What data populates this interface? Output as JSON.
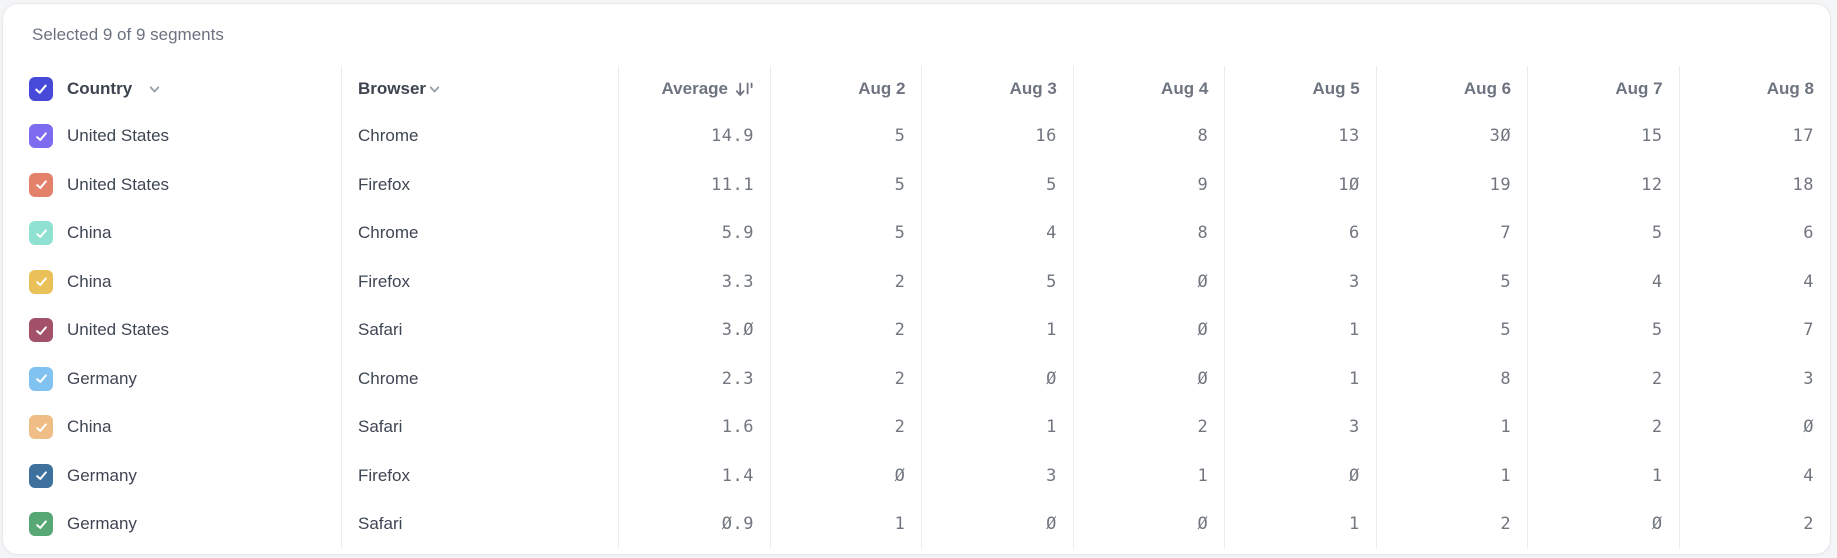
{
  "status_bar": {
    "text": "Selected 9 of 9 segments"
  },
  "header": {
    "country_label": "Country",
    "browser_label": "Browser",
    "average_label": "Average",
    "date_columns": [
      "Aug 2",
      "Aug 3",
      "Aug 4",
      "Aug 5",
      "Aug 6",
      "Aug 7",
      "Aug 8"
    ],
    "select_all_checked": true,
    "select_all_color": "#474ad8",
    "sort_state": "descending"
  },
  "icons": {
    "country_dropdown": "chevron-down",
    "browser_dropdown": "chevron-down",
    "average_sort": "sort-descending-arrow-with-bars",
    "checkbox_mark": "check"
  },
  "colors": {
    "card_background": "#ffffff",
    "page_background": "#f4f5f7",
    "divider": "#ebecef",
    "header_text": "#6d7480",
    "cell_text": "#3e4553",
    "number_text": "#71767f"
  },
  "rows": [
    {
      "checked": true,
      "checkbox_color": "#7e6cf0",
      "country": "United States",
      "browser": "Chrome",
      "average": "14.9",
      "values": [
        5,
        16,
        8,
        13,
        30,
        15,
        17
      ]
    },
    {
      "checked": true,
      "checkbox_color": "#e3816b",
      "country": "United States",
      "browser": "Firefox",
      "average": "11.1",
      "values": [
        5,
        5,
        9,
        10,
        19,
        12,
        18
      ]
    },
    {
      "checked": true,
      "checkbox_color": "#8fe1d1",
      "country": "China",
      "browser": "Chrome",
      "average": "5.9",
      "values": [
        5,
        4,
        8,
        6,
        7,
        5,
        6
      ]
    },
    {
      "checked": true,
      "checkbox_color": "#eac158",
      "country": "China",
      "browser": "Firefox",
      "average": "3.3",
      "values": [
        2,
        5,
        0,
        3,
        5,
        4,
        4
      ]
    },
    {
      "checked": true,
      "checkbox_color": "#a35069",
      "country": "United States",
      "browser": "Safari",
      "average": "3.0",
      "values": [
        2,
        1,
        0,
        1,
        5,
        5,
        7
      ]
    },
    {
      "checked": true,
      "checkbox_color": "#81c3f0",
      "country": "Germany",
      "browser": "Chrome",
      "average": "2.3",
      "values": [
        2,
        0,
        0,
        1,
        8,
        2,
        3
      ]
    },
    {
      "checked": true,
      "checkbox_color": "#f0bd86",
      "country": "China",
      "browser": "Safari",
      "average": "1.6",
      "values": [
        2,
        1,
        2,
        3,
        1,
        2,
        0
      ]
    },
    {
      "checked": true,
      "checkbox_color": "#3f719e",
      "country": "Germany",
      "browser": "Firefox",
      "average": "1.4",
      "values": [
        0,
        3,
        1,
        0,
        1,
        1,
        4
      ]
    },
    {
      "checked": true,
      "checkbox_color": "#58a876",
      "country": "Germany",
      "browser": "Safari",
      "average": "0.9",
      "values": [
        1,
        0,
        0,
        1,
        2,
        0,
        2
      ]
    }
  ]
}
